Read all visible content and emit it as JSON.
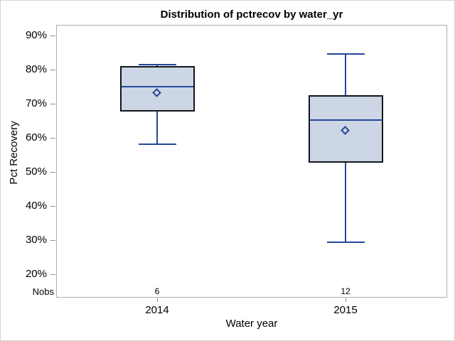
{
  "chart_data": {
    "type": "boxplot",
    "title": "Distribution of pctrecov by water_yr",
    "xlabel": "Water year",
    "ylabel": "Pct Recovery",
    "nobs_label": "Nobs",
    "categories": [
      "2014",
      "2015"
    ],
    "y_axis": {
      "min": 20,
      "max": 90,
      "tick_step": 10,
      "tick_labels": [
        "20%",
        "30%",
        "40%",
        "50%",
        "60%",
        "70%",
        "80%",
        "90%"
      ],
      "unit": "percent"
    },
    "grid": false,
    "legend": "none",
    "series": [
      {
        "category": "2014",
        "nobs": "6",
        "whisker_low": 58.2,
        "q1": 67.8,
        "median": 74.9,
        "q3": 81.1,
        "whisker_high": 81.5,
        "mean": 73.1
      },
      {
        "category": "2015",
        "nobs": "12",
        "whisker_low": 29.4,
        "q1": 52.8,
        "median": 65.3,
        "q3": 72.6,
        "whisker_high": 84.5,
        "mean": 62.0
      }
    ],
    "colors": {
      "box_fill": "#ccd6e4",
      "box_border": "#11151c",
      "median_line": "#25479a",
      "whisker": "#25479a",
      "mean_marker": "#25479a",
      "frame": "#a9aeb2",
      "tick": "#8b9095",
      "text": "#000000",
      "background": "#ffffff"
    }
  }
}
